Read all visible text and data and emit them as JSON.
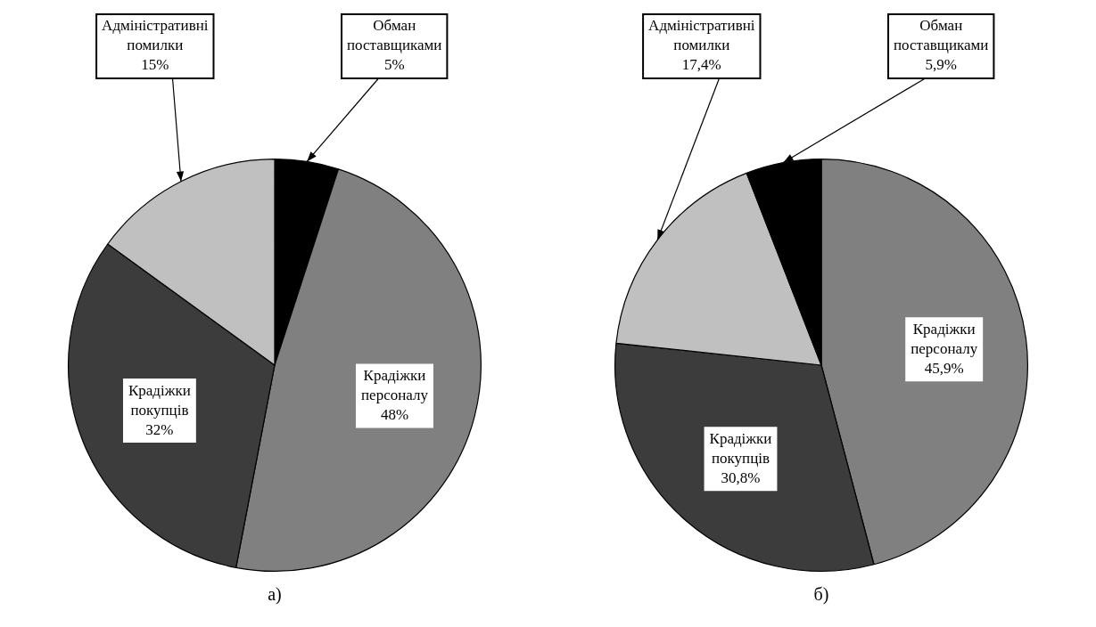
{
  "chart_data": [
    {
      "type": "pie",
      "title": "а)",
      "categories": [
        "Обман поставщиками",
        "Крадіжки персоналу",
        "Крадіжки покупців",
        "Адміністративні помилки"
      ],
      "values": [
        5,
        48,
        32,
        15
      ],
      "value_labels": [
        "5%",
        "48%",
        "32%",
        "15%"
      ],
      "colors": [
        "#000000",
        "#808080",
        "#3c3c3c",
        "#c0c0c0"
      ],
      "legend": false
    },
    {
      "type": "pie",
      "title": "б)",
      "categories": [
        "Крадіжки персоналу",
        "Крадіжки покупців",
        "Адміністративні помилки",
        "Обман поставщиками"
      ],
      "values": [
        45.9,
        30.8,
        17.4,
        5.9
      ],
      "value_labels": [
        "45,9%",
        "30,8%",
        "17,4%",
        "5,9%"
      ],
      "colors": [
        "#808080",
        "#3c3c3c",
        "#c0c0c0",
        "#000000"
      ],
      "legend": false
    }
  ]
}
